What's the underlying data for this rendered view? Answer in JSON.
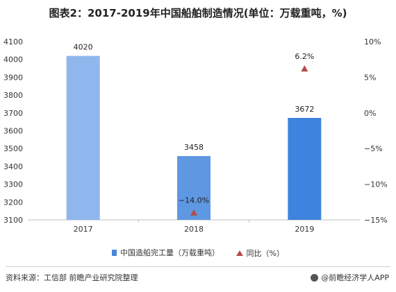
{
  "title": "图表2：2017-2019年中国船舶制造情况(单位：万载重吨，%)",
  "chart_data": {
    "type": "bar+line",
    "categories": [
      "2017",
      "2018",
      "2019"
    ],
    "series": [
      {
        "name": "中国造船完工量（万载重吨）",
        "type": "bar",
        "axis": "left",
        "values": [
          4020,
          3458,
          3672
        ],
        "labels": [
          "4020",
          "3458",
          "3672"
        ],
        "colors": [
          "#8fb7ee",
          "#5f98e2",
          "#3e83dd"
        ]
      },
      {
        "name": "同比（%）",
        "type": "scatter",
        "axis": "right",
        "values": [
          null,
          -14.0,
          6.2
        ],
        "labels": [
          "",
          "−14.0%",
          "6.2%"
        ],
        "color": "#b44a4a"
      }
    ],
    "y_left": {
      "min": 3100,
      "max": 4100,
      "step": 100,
      "ticks": [
        "3100",
        "3200",
        "3300",
        "3400",
        "3500",
        "3600",
        "3700",
        "3800",
        "3900",
        "4000",
        "4100"
      ]
    },
    "y_right": {
      "min": -15,
      "max": 10,
      "step": 5,
      "ticks": [
        "−15%",
        "−10%",
        "−5%",
        "0%",
        "5%",
        "10%"
      ]
    },
    "grid": false,
    "legend_position": "bottom"
  },
  "legend": {
    "bar_label": "中国造船完工量（万载重吨）",
    "line_label": "同比（%）"
  },
  "footer": {
    "source": "资料来源：工信部 前瞻产业研究院整理",
    "brand": "@前瞻经济学人APP"
  }
}
